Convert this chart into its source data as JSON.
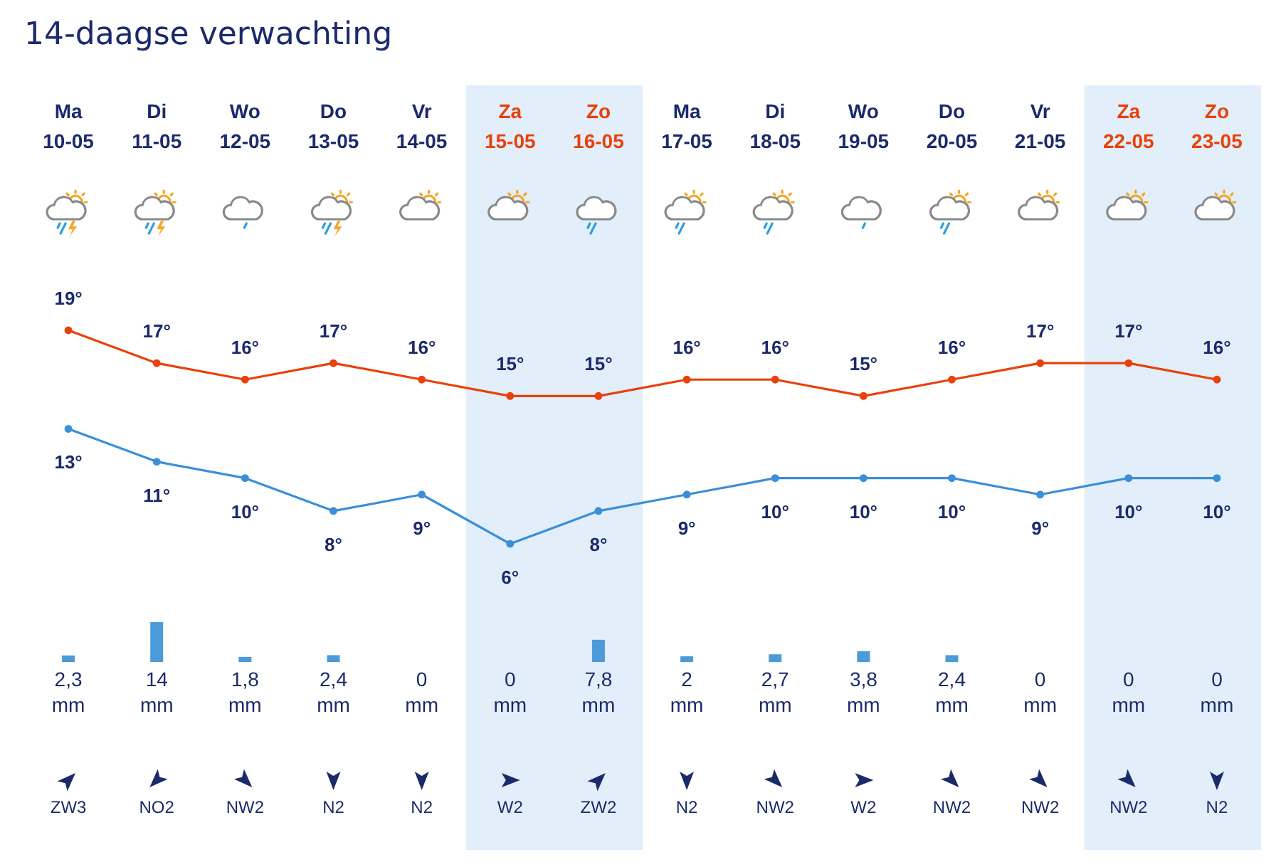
{
  "chart_data": [
    {
      "type": "line",
      "title": "14-daagse verwachting",
      "categories": [
        "Ma 10-05",
        "Di 11-05",
        "Wo 12-05",
        "Do 13-05",
        "Vr 14-05",
        "Za 15-05",
        "Zo 16-05",
        "Ma 17-05",
        "Di 18-05",
        "Wo 19-05",
        "Do 20-05",
        "Vr 21-05",
        "Za 22-05",
        "Zo 23-05"
      ],
      "series": [
        {
          "type": "line",
          "color": "#e8410a",
          "values": [
            19,
            17,
            16,
            17,
            16,
            15,
            15,
            16,
            16,
            15,
            16,
            17,
            17,
            16
          ],
          "value_labels": [
            "19°",
            "17°",
            "16°",
            "17°",
            "16°",
            "15°",
            "15°",
            "16°",
            "16°",
            "15°",
            "16°",
            "17°",
            "17°",
            "16°"
          ]
        },
        {
          "type": "line",
          "color": "#3a8fd6",
          "values": [
            13,
            11,
            10,
            8,
            9,
            6,
            8,
            9,
            10,
            10,
            10,
            9,
            10,
            10
          ],
          "value_labels": [
            "13°",
            "11°",
            "10°",
            "8°",
            "9°",
            "6°",
            "8°",
            "9°",
            "10°",
            "10°",
            "10°",
            "9°",
            "10°",
            "10°"
          ]
        }
      ],
      "bands": [
        {
          "axis": "x",
          "from": "Za 15-05",
          "to": "Zo 16-05",
          "color": "#e2eef9"
        },
        {
          "axis": "x",
          "from": "Za 22-05",
          "to": "Zo 23-05",
          "color": "#e2eef9"
        }
      ],
      "marker": "circle",
      "line_style": "solid"
    },
    {
      "type": "bar",
      "categories": [
        "Ma 10-05",
        "Di 11-05",
        "Wo 12-05",
        "Do 13-05",
        "Vr 14-05",
        "Za 15-05",
        "Zo 16-05",
        "Ma 17-05",
        "Di 18-05",
        "Wo 19-05",
        "Do 20-05",
        "Vr 21-05",
        "Za 22-05",
        "Zo 23-05"
      ],
      "series": [
        {
          "type": "bar",
          "color": "#4b9bd9",
          "values": [
            2.3,
            14,
            1.8,
            2.4,
            0,
            0,
            7.8,
            2,
            2.7,
            3.8,
            2.4,
            0,
            0,
            0
          ],
          "value_labels": [
            "2,3 mm",
            "14 mm",
            "1,8 mm",
            "2,4 mm",
            "0 mm",
            "0 mm",
            "7,8 mm",
            "2 mm",
            "2,7 mm",
            "3,8 mm",
            "2,4 mm",
            "0 mm",
            "0 mm",
            "0 mm"
          ]
        }
      ],
      "bands": [
        {
          "axis": "x",
          "from": "Za 15-05",
          "to": "Zo 16-05",
          "color": "#e2eef9"
        },
        {
          "axis": "x",
          "from": "Za 22-05",
          "to": "Zo 23-05",
          "color": "#e2eef9"
        }
      ],
      "annotations": [
        "ZW3",
        "NO2",
        "NW2",
        "N2",
        "N2",
        "W2",
        "ZW2",
        "N2",
        "NW2",
        "W2",
        "NW2",
        "NW2",
        "NW2",
        "N2"
      ],
      "tick_labels": false
    }
  ]
}
